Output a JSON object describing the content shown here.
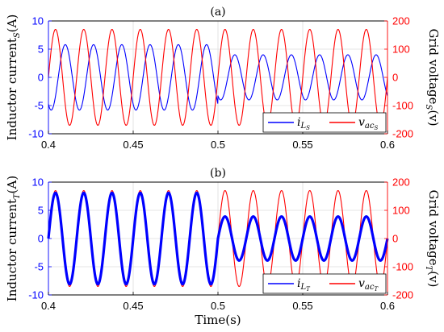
{
  "colors": {
    "left_axis": "#0000ff",
    "right_axis": "#ff0000",
    "grid": "#dcdcdc",
    "axis": "#000000"
  },
  "xlabel": "Time(s)",
  "chart_data": [
    {
      "type": "line",
      "title": "(a)",
      "ylabel_left": "Inductor current",
      "ylabel_left_sub": "S",
      "ylabel_left_unit": "(A)",
      "ylabel_right": "Grid voltage",
      "ylabel_right_sub": "S",
      "ylabel_right_unit": "(v)",
      "xlim": [
        0.4,
        0.6
      ],
      "ylim_left": [
        -10,
        10
      ],
      "ylim_right": [
        -200,
        200
      ],
      "x_ticks": [
        "0.4",
        "0.45",
        "0.5",
        "0.55",
        "0.6"
      ],
      "y_ticks_left": [
        "-10",
        "-5",
        "0",
        "5",
        "10"
      ],
      "y_ticks_right": [
        "-200",
        "-100",
        "0",
        "100",
        "200"
      ],
      "grid": true,
      "legend_position": "bottom-right",
      "series": [
        {
          "name": "i",
          "name_sub": "L",
          "name_sub2": "S",
          "axis": "left",
          "color": "#0000ff",
          "frequency_hz": 60,
          "amplitude_before": 5.8,
          "amplitude_after": 4.0,
          "step_time": 0.5,
          "phase_deg": 235,
          "ripple": 0
        },
        {
          "name": "v",
          "name_sub": "ac",
          "name_sub2": "S",
          "axis": "right",
          "color": "#ff0000",
          "frequency_hz": 60,
          "amplitude_before": 170,
          "amplitude_after": 170,
          "step_time": 0.5,
          "phase_deg": 0,
          "ripple": 0
        }
      ]
    },
    {
      "type": "line",
      "title": "(b)",
      "ylabel_left": "Inductor current",
      "ylabel_left_sub": "T",
      "ylabel_left_unit": "(A)",
      "ylabel_right": "Grid voltage",
      "ylabel_right_sub": "T",
      "ylabel_right_unit": "(v)",
      "xlim": [
        0.4,
        0.6
      ],
      "ylim_left": [
        -10,
        10
      ],
      "ylim_right": [
        -200,
        200
      ],
      "x_ticks": [
        "0.4",
        "0.45",
        "0.5",
        "0.55",
        "0.6"
      ],
      "y_ticks_left": [
        "-10",
        "-5",
        "0",
        "5",
        "10"
      ],
      "y_ticks_right": [
        "-200",
        "-100",
        "0",
        "100",
        "200"
      ],
      "grid": true,
      "legend_position": "bottom-right",
      "series": [
        {
          "name": "i",
          "name_sub": "L",
          "name_sub2": "T",
          "axis": "left",
          "color": "#0000ff",
          "frequency_hz": 60,
          "amplitude_before": 8.1,
          "amplitude_after": 3.9,
          "step_time": 0.5,
          "phase_deg": 0,
          "ripple": 0.45
        },
        {
          "name": "v",
          "name_sub": "ac",
          "name_sub2": "T",
          "axis": "right",
          "color": "#ff0000",
          "frequency_hz": 60,
          "amplitude_before": 170,
          "amplitude_after": 170,
          "step_time": 0.5,
          "phase_deg": 0,
          "ripple": 0
        }
      ]
    }
  ]
}
